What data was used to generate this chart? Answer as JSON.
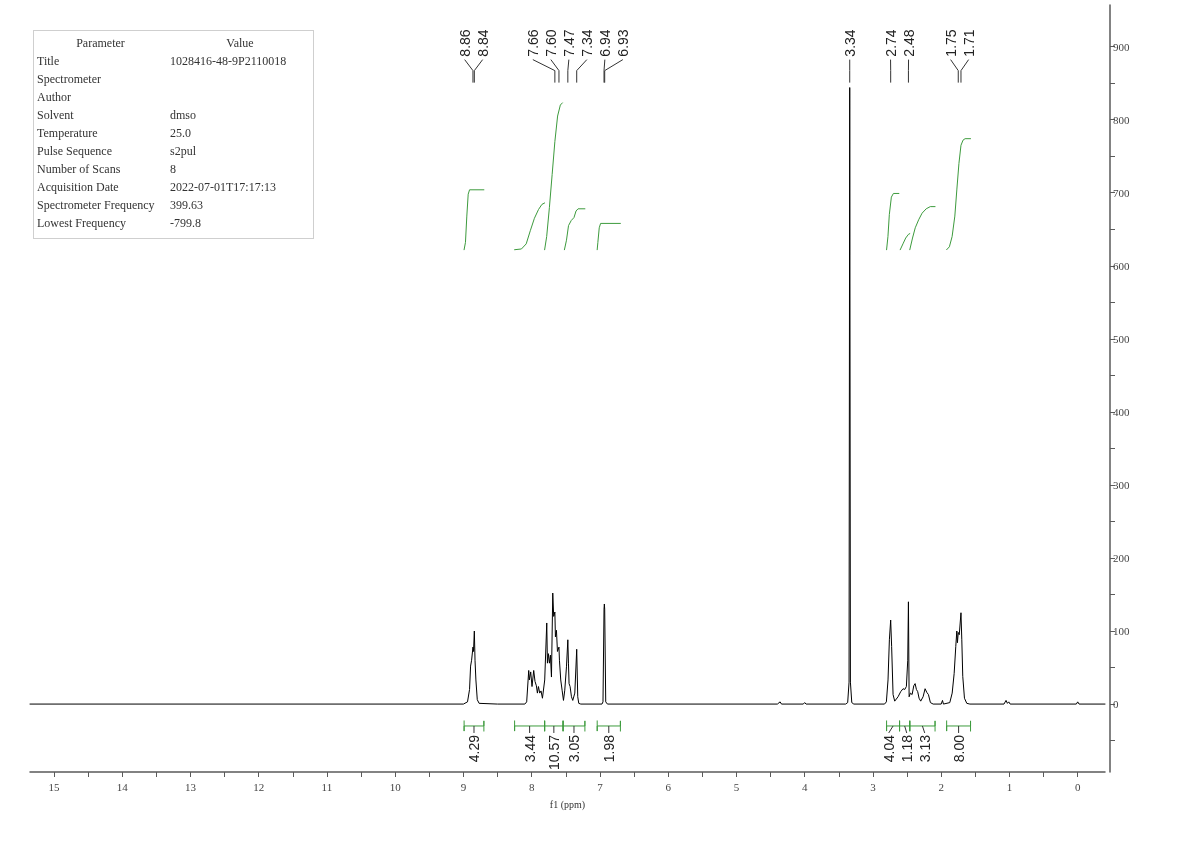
{
  "chart_data": [
    {
      "type": "other",
      "annotations": [
        "Parameter",
        "Value"
      ],
      "categories": [
        "Title",
        "Spectrometer",
        "Author",
        "Solvent",
        "Temperature",
        "Pulse Sequence",
        "Number of Scans",
        "Acquisition Date",
        "Spectrometer Frequency",
        "Lowest Frequency"
      ],
      "value_labels": [
        "1028416-48-9P2110018",
        null,
        null,
        "dmso",
        "25.0",
        "s2pul",
        "8",
        "2022-07-01T17:17:13",
        "399.63",
        "-799.8"
      ]
    },
    {
      "type": "line",
      "xlabel": "f1 (ppm)",
      "xlim": [
        15.35,
        -0.4
      ],
      "xticks": [
        15,
        {
          "value": 14.5,
          "label": null
        },
        14,
        {
          "value": 13.5,
          "label": null
        },
        13,
        {
          "value": 12.5,
          "label": null
        },
        12,
        {
          "value": 11.5,
          "label": null
        },
        11,
        {
          "value": 10.5,
          "label": null
        },
        10,
        {
          "value": 9.5,
          "label": null
        },
        9,
        {
          "value": 8.5,
          "label": null
        },
        8,
        {
          "value": 7.5,
          "label": null
        },
        7,
        {
          "value": 6.5,
          "label": null
        },
        6,
        {
          "value": 5.5,
          "label": null
        },
        5,
        {
          "value": 4.5,
          "label": null
        },
        4,
        {
          "value": 3.5,
          "label": null
        },
        3,
        {
          "value": 2.5,
          "label": null
        },
        2,
        {
          "value": 1.5,
          "label": null
        },
        1,
        {
          "value": 0.5,
          "label": null
        },
        0
      ],
      "ylim": [
        -93,
        957
      ],
      "yticks": [
        {
          "value": -50,
          "label": null
        },
        0,
        {
          "value": 50,
          "label": null
        },
        100,
        {
          "value": 150,
          "label": null
        },
        200,
        {
          "value": 250,
          "label": null
        },
        300,
        {
          "value": 350,
          "label": null
        },
        400,
        {
          "value": 450,
          "label": null
        },
        500,
        {
          "value": 550,
          "label": null
        },
        600,
        {
          "value": 650,
          "label": null
        },
        700,
        {
          "value": 750,
          "label": null
        },
        800,
        {
          "value": 850,
          "label": null
        },
        900
      ],
      "series": [
        {
          "color": "#000000",
          "x": [
            15.35,
            9.0,
            8.94,
            8.91,
            8.895,
            8.88,
            8.86,
            8.852,
            8.84,
            8.83,
            8.817,
            8.797,
            8.77,
            8.5,
            8.1,
            8.073,
            8.043,
            8.034,
            8.014,
            7.995,
            7.97,
            7.951,
            7.931,
            7.916,
            7.901,
            7.882,
            7.863,
            7.842,
            7.809,
            7.779,
            7.769,
            7.755,
            7.74,
            7.725,
            7.71,
            7.691,
            7.677,
            7.66,
            7.652,
            7.637,
            7.622,
            7.6,
            7.593,
            7.574,
            7.554,
            7.534,
            7.515,
            7.49,
            7.47,
            7.461,
            7.452,
            7.437,
            7.417,
            7.398,
            7.368,
            7.34,
            7.325,
            7.31,
            7.28,
            6.97,
            6.955,
            6.94,
            6.935,
            6.93,
            6.915,
            6.89,
            4.4,
            4.36,
            4.34,
            4.02,
            4.0,
            3.98,
            3.4,
            3.37,
            3.35,
            3.34,
            3.33,
            3.31,
            3.28,
            2.83,
            2.803,
            2.779,
            2.759,
            2.74,
            2.726,
            2.705,
            2.681,
            2.632,
            2.593,
            2.559,
            2.534,
            2.51,
            2.49,
            2.48,
            2.47,
            2.451,
            2.426,
            2.402,
            2.382,
            2.363,
            2.344,
            2.324,
            2.3,
            2.265,
            2.236,
            2.211,
            2.187,
            2.158,
            2.118,
            2.0,
            1.981,
            1.967,
            1.874,
            1.839,
            1.81,
            1.786,
            1.771,
            1.762,
            1.75,
            1.735,
            1.71,
            1.698,
            1.684,
            1.659,
            1.625,
            1.58,
            1.08,
            1.05,
            1.03,
            1.01,
            0.99,
            0.02,
            0.0,
            -0.02,
            -0.4
          ],
          "values": [
            0,
            0,
            3,
            20,
            52,
            60,
            78,
            72,
            100,
            60,
            33,
            6,
            1,
            0,
            0,
            3,
            46,
            33,
            44,
            24,
            46,
            31,
            25,
            15,
            24,
            15,
            18,
            8,
            33,
            111,
            56,
            69,
            56,
            67,
            37,
            152,
            120,
            126,
            92,
            101,
            72,
            78,
            60,
            33,
            19,
            5,
            19,
            51,
            88,
            56,
            28,
            24,
            10,
            5,
            15,
            75,
            10,
            1,
            0,
            0,
            3,
            130,
            137,
            130,
            3,
            0,
            0,
            3,
            0,
            0,
            2,
            0,
            0,
            2,
            30,
            844,
            30,
            2,
            0,
            0,
            3,
            33,
            88,
            115,
            79,
            13,
            4,
            10,
            17,
            21,
            20,
            24,
            60,
            140,
            10,
            15,
            13,
            25,
            28,
            20,
            17,
            8,
            4,
            10,
            21,
            16,
            13,
            2,
            0,
            0,
            5,
            0,
            2,
            15,
            42,
            79,
            100,
            84,
            98,
            95,
            125,
            88,
            38,
            8,
            1,
            0,
            0,
            5,
            1,
            3,
            0,
            0,
            3,
            0,
            0
          ]
        },
        {
          "color": "#3d9b3d",
          "x": [
            8.99,
            8.97,
            8.95,
            8.93,
            8.91,
            8.7
          ],
          "values": [
            622,
            632,
            668,
            698,
            704,
            704
          ]
        },
        {
          "color": "#3d9b3d",
          "x": [
            8.25,
            8.15,
            8.08,
            8.02,
            7.96,
            7.9,
            7.85,
            7.81
          ],
          "values": [
            622,
            623,
            630,
            648,
            665,
            677,
            684,
            686
          ]
        },
        {
          "color": "#3d9b3d",
          "x": [
            7.81,
            7.78,
            7.74,
            7.7,
            7.66,
            7.62,
            7.58,
            7.55
          ],
          "values": [
            622,
            640,
            680,
            725,
            770,
            805,
            820,
            823
          ]
        },
        {
          "color": "#3d9b3d",
          "x": [
            7.52,
            7.49,
            7.46,
            7.42,
            7.38,
            7.35,
            7.32,
            7.22
          ],
          "values": [
            622,
            635,
            655,
            662,
            666,
            675,
            678,
            678
          ]
        },
        {
          "color": "#3d9b3d",
          "x": [
            7.04,
            7.03,
            7.01,
            6.99,
            6.7
          ],
          "values": [
            622,
            632,
            652,
            658,
            658
          ]
        },
        {
          "color": "#3d9b3d",
          "x": [
            2.8,
            2.78,
            2.76,
            2.73,
            2.7,
            2.62
          ],
          "values": [
            622,
            640,
            670,
            694,
            699,
            699
          ]
        },
        {
          "color": "#3d9b3d",
          "x": [
            2.6,
            2.56,
            2.52,
            2.48,
            2.46
          ],
          "values": [
            622,
            630,
            638,
            643,
            644
          ]
        },
        {
          "color": "#3d9b3d",
          "x": [
            2.46,
            2.42,
            2.38,
            2.33,
            2.28,
            2.22,
            2.16,
            2.09
          ],
          "values": [
            622,
            638,
            652,
            663,
            672,
            678,
            681,
            681
          ]
        },
        {
          "color": "#3d9b3d",
          "x": [
            1.92,
            1.88,
            1.84,
            1.8,
            1.77,
            1.74,
            1.71,
            1.68,
            1.65,
            1.57
          ],
          "values": [
            622,
            626,
            640,
            668,
            705,
            740,
            765,
            772,
            774,
            774
          ]
        },
        {
          "color": "#3d9b3d",
          "x": [
            8.99,
            8.99,
            8.99,
            8.7,
            8.7,
            8.7
          ],
          "values": [
            -23,
            -37,
            -30,
            -30,
            -23,
            -37
          ]
        },
        {
          "color": "#3d9b3d",
          "x": [
            8.25,
            8.25,
            8.25,
            7.81,
            7.81,
            7.81
          ],
          "values": [
            -23,
            -37,
            -30,
            -30,
            -23,
            -37
          ]
        },
        {
          "color": "#3d9b3d",
          "x": [
            7.81,
            7.81,
            7.81,
            7.54,
            7.54,
            7.54
          ],
          "values": [
            -23,
            -37,
            -30,
            -30,
            -23,
            -37
          ]
        },
        {
          "color": "#3d9b3d",
          "x": [
            7.54,
            7.54,
            7.54,
            7.22,
            7.22,
            7.22
          ],
          "values": [
            -23,
            -37,
            -30,
            -30,
            -23,
            -37
          ]
        },
        {
          "color": "#3d9b3d",
          "x": [
            7.04,
            7.04,
            7.04,
            6.7,
            6.7,
            6.7
          ],
          "values": [
            -23,
            -37,
            -30,
            -30,
            -23,
            -37
          ]
        },
        {
          "color": "#3d9b3d",
          "x": [
            2.8,
            2.8,
            2.8,
            2.61,
            2.61,
            2.61
          ],
          "values": [
            -23,
            -37,
            -30,
            -30,
            -23,
            -37
          ]
        },
        {
          "color": "#3d9b3d",
          "x": [
            2.61,
            2.61,
            2.61,
            2.46,
            2.46,
            2.46
          ],
          "values": [
            -23,
            -37,
            -30,
            -30,
            -23,
            -37
          ]
        },
        {
          "color": "#3d9b3d",
          "x": [
            2.46,
            2.46,
            2.46,
            2.09,
            2.09,
            2.09
          ],
          "values": [
            -23,
            -37,
            -30,
            -30,
            -23,
            -37
          ]
        },
        {
          "color": "#3d9b3d",
          "x": [
            1.92,
            1.92,
            1.92,
            1.57,
            1.57,
            1.57
          ],
          "values": [
            -23,
            -37,
            -30,
            -30,
            -23,
            -37
          ]
        }
      ],
      "ref_lines": [
        {
          "axis": "x",
          "value": 8.86,
          "label": "8.86"
        },
        {
          "axis": "x",
          "value": 8.84,
          "label": "8.84"
        },
        {
          "axis": "x",
          "value": 7.66,
          "label": "7.66"
        },
        {
          "axis": "x",
          "value": 7.6,
          "label": "7.60"
        },
        {
          "axis": "x",
          "value": 7.47,
          "label": "7.47"
        },
        {
          "axis": "x",
          "value": 7.34,
          "label": "7.34"
        },
        {
          "axis": "x",
          "value": 6.94,
          "label": "6.94"
        },
        {
          "axis": "x",
          "value": 6.93,
          "label": "6.93"
        },
        {
          "axis": "x",
          "value": 3.34,
          "label": "3.34"
        },
        {
          "axis": "x",
          "value": 2.74,
          "label": "2.74"
        },
        {
          "axis": "x",
          "value": 2.48,
          "label": "2.48"
        },
        {
          "axis": "x",
          "value": 1.75,
          "label": "1.75"
        },
        {
          "axis": "x",
          "value": 1.71,
          "label": "1.71"
        }
      ],
      "annotations": [
        {
          "text": "4.29",
          "x": 8.845,
          "y": -30
        },
        {
          "text": "3.44",
          "x": 8.03,
          "y": -30
        },
        {
          "text": "10.57",
          "x": 7.675,
          "y": -30
        },
        {
          "text": "3.05",
          "x": 7.38,
          "y": -30
        },
        {
          "text": "1.98",
          "x": 6.87,
          "y": -30
        },
        {
          "text": "4.04",
          "x": 2.705,
          "y": -30
        },
        {
          "text": "1.18",
          "x": 2.535,
          "y": -30
        },
        {
          "text": "3.13",
          "x": 2.275,
          "y": -30
        },
        {
          "text": "8.00",
          "x": 1.745,
          "y": -30
        }
      ]
    }
  ]
}
